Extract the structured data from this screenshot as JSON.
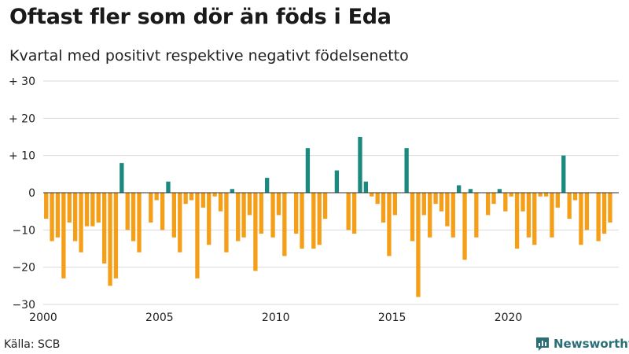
{
  "title": "Oftast fler som dör än föds i Eda",
  "subtitle": "Kvartal med positivt respektive negativt födelsenetto",
  "source": "Källa: SCB",
  "brand": "Newsworthy",
  "logo_icon": "bar-chart-speech-bubble-icon",
  "colors": {
    "positive": "#1a8a80",
    "negative": "#f59f19",
    "grid": "#d9d9d9",
    "zero": "#333333",
    "brand": "#2a6f77"
  },
  "chart_data": {
    "type": "bar",
    "title": "Oftast fler som dör än föds i Eda",
    "subtitle": "Kvartal med positivt respektive negativt födelsenetto",
    "xlabel": "",
    "ylabel": "",
    "ylim": [
      -30,
      30
    ],
    "xlim": [
      2000,
      2024.75
    ],
    "grid": true,
    "y_ticks": [
      {
        "value": 30,
        "label": "+ 30"
      },
      {
        "value": 20,
        "label": "+ 20"
      },
      {
        "value": 10,
        "label": "+ 10"
      },
      {
        "value": 0,
        "label": "0"
      },
      {
        "value": -10,
        "label": "−10"
      },
      {
        "value": -20,
        "label": "−20"
      },
      {
        "value": -30,
        "label": "−30"
      }
    ],
    "x_ticks": [
      {
        "value": 2000,
        "label": "2000"
      },
      {
        "value": 2005,
        "label": "2005"
      },
      {
        "value": 2010,
        "label": "2010"
      },
      {
        "value": 2015,
        "label": "2015"
      },
      {
        "value": 2020,
        "label": "2020"
      }
    ],
    "start_year": 2000,
    "quarters_per_year": 4,
    "values": [
      -7,
      -13,
      -12,
      -23,
      -8,
      -13,
      -16,
      -9,
      -9,
      -8,
      -19,
      -25,
      -23,
      8,
      -10,
      -13,
      -16,
      0,
      -8,
      -2,
      -10,
      3,
      -12,
      -16,
      -3,
      -2,
      -23,
      -4,
      -14,
      -1,
      -5,
      -16,
      1,
      -13,
      -12,
      -6,
      -21,
      -11,
      4,
      -12,
      -6,
      -17,
      0,
      -11,
      -15,
      12,
      -15,
      -14,
      -7,
      0,
      6,
      0,
      -10,
      -11,
      15,
      3,
      -1,
      -3,
      -8,
      -17,
      -6,
      0,
      12,
      -13,
      -28,
      -6,
      -12,
      -3,
      -5,
      -9,
      -12,
      2,
      -18,
      1,
      -12,
      0,
      -6,
      -3,
      1,
      -5,
      -1,
      -15,
      -5,
      -12,
      -14,
      -1,
      -1,
      -12,
      -4,
      10,
      -7,
      -2,
      -14,
      -10,
      0,
      -13,
      -11,
      -8
    ]
  }
}
